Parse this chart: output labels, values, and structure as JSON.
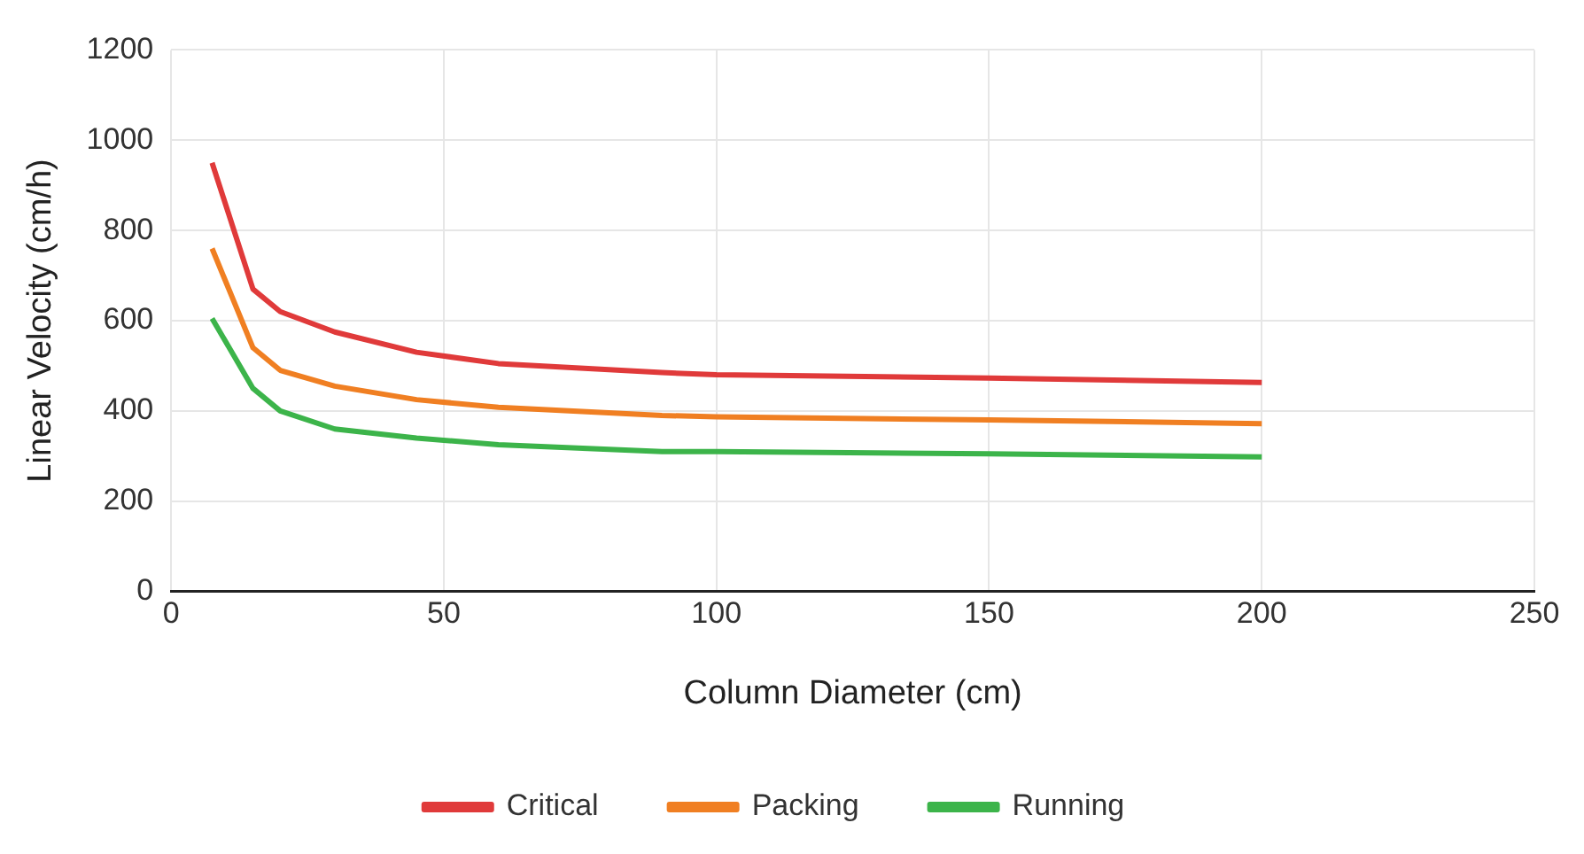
{
  "chart_data": {
    "type": "line",
    "xlabel": "Column Diameter (cm)",
    "ylabel": "Linear Velocity (cm/h)",
    "x": [
      7.5,
      15,
      20,
      30,
      45,
      60,
      90,
      100,
      150,
      200
    ],
    "series": [
      {
        "name": "Critical",
        "color": "#e03a3a",
        "values": [
          950,
          670,
          620,
          575,
          530,
          505,
          485,
          480,
          473,
          463
        ]
      },
      {
        "name": "Packing",
        "color": "#f07f22",
        "values": [
          760,
          540,
          490,
          455,
          425,
          408,
          390,
          387,
          380,
          372
        ]
      },
      {
        "name": "Running",
        "color": "#3cb44a",
        "values": [
          605,
          450,
          400,
          360,
          340,
          325,
          310,
          310,
          305,
          298
        ]
      }
    ],
    "xlim": [
      0,
      250
    ],
    "xticks": [
      0,
      50,
      100,
      150,
      200,
      250
    ],
    "ylim": [
      0,
      1200
    ],
    "yticks": [
      0,
      200,
      400,
      600,
      800,
      1000,
      1200
    ],
    "grid": true,
    "legend": "bottom",
    "marker": "none",
    "line_style": "solid"
  }
}
